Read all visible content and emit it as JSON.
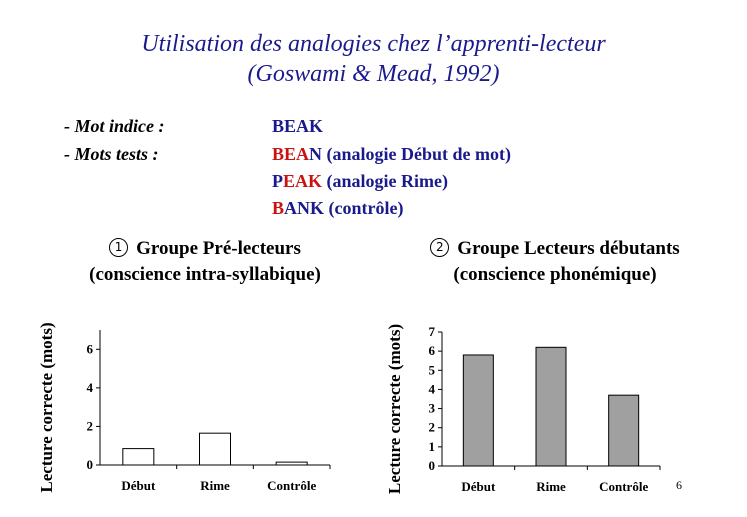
{
  "title": {
    "line1": "Utilisation des analogies chez l’apprenti-lecteur",
    "line2": "(Goswami & Mead, 1992)"
  },
  "cue": {
    "label": "- Mot indice :",
    "word": "BEAK"
  },
  "tests": {
    "label": "- Mots tests :",
    "items": [
      {
        "red": "BEA",
        "blue": "N (analogie Début de mot)"
      },
      {
        "blue_pre": "P",
        "red": "EAK",
        "blue": " (analogie Rime)"
      },
      {
        "red": "B",
        "blue": "ANK (contrôle)"
      }
    ]
  },
  "groups": [
    {
      "number": "1",
      "title": "Groupe Pré-lecteurs",
      "subtitle": "(conscience intra-syllabique)"
    },
    {
      "number": "2",
      "title": "Groupe Lecteurs débutants",
      "subtitle": "(conscience phonémique)"
    }
  ],
  "chart_data": [
    {
      "type": "bar",
      "categories": [
        "Début",
        "Rime",
        "Contrôle"
      ],
      "values": [
        0.85,
        1.65,
        0.15
      ],
      "ylabel": "Lecture correcte (mots)",
      "yticks": [
        0,
        2,
        4,
        6
      ],
      "ylim": [
        0,
        7
      ],
      "bar_color": "#ffffff",
      "grid": false
    },
    {
      "type": "bar",
      "categories": [
        "Début",
        "Rime",
        "Contrôle"
      ],
      "values": [
        5.8,
        6.2,
        3.7
      ],
      "ylabel": "Lecture correcte (mots)",
      "yticks": [
        0,
        1,
        2,
        3,
        4,
        5,
        6,
        7
      ],
      "ylim": [
        0,
        7
      ],
      "bar_color": "#a0a0a0",
      "grid": false
    }
  ],
  "page_number": "6",
  "colors": {
    "title": "#1a1a8c",
    "highlight": "#cc1111"
  }
}
